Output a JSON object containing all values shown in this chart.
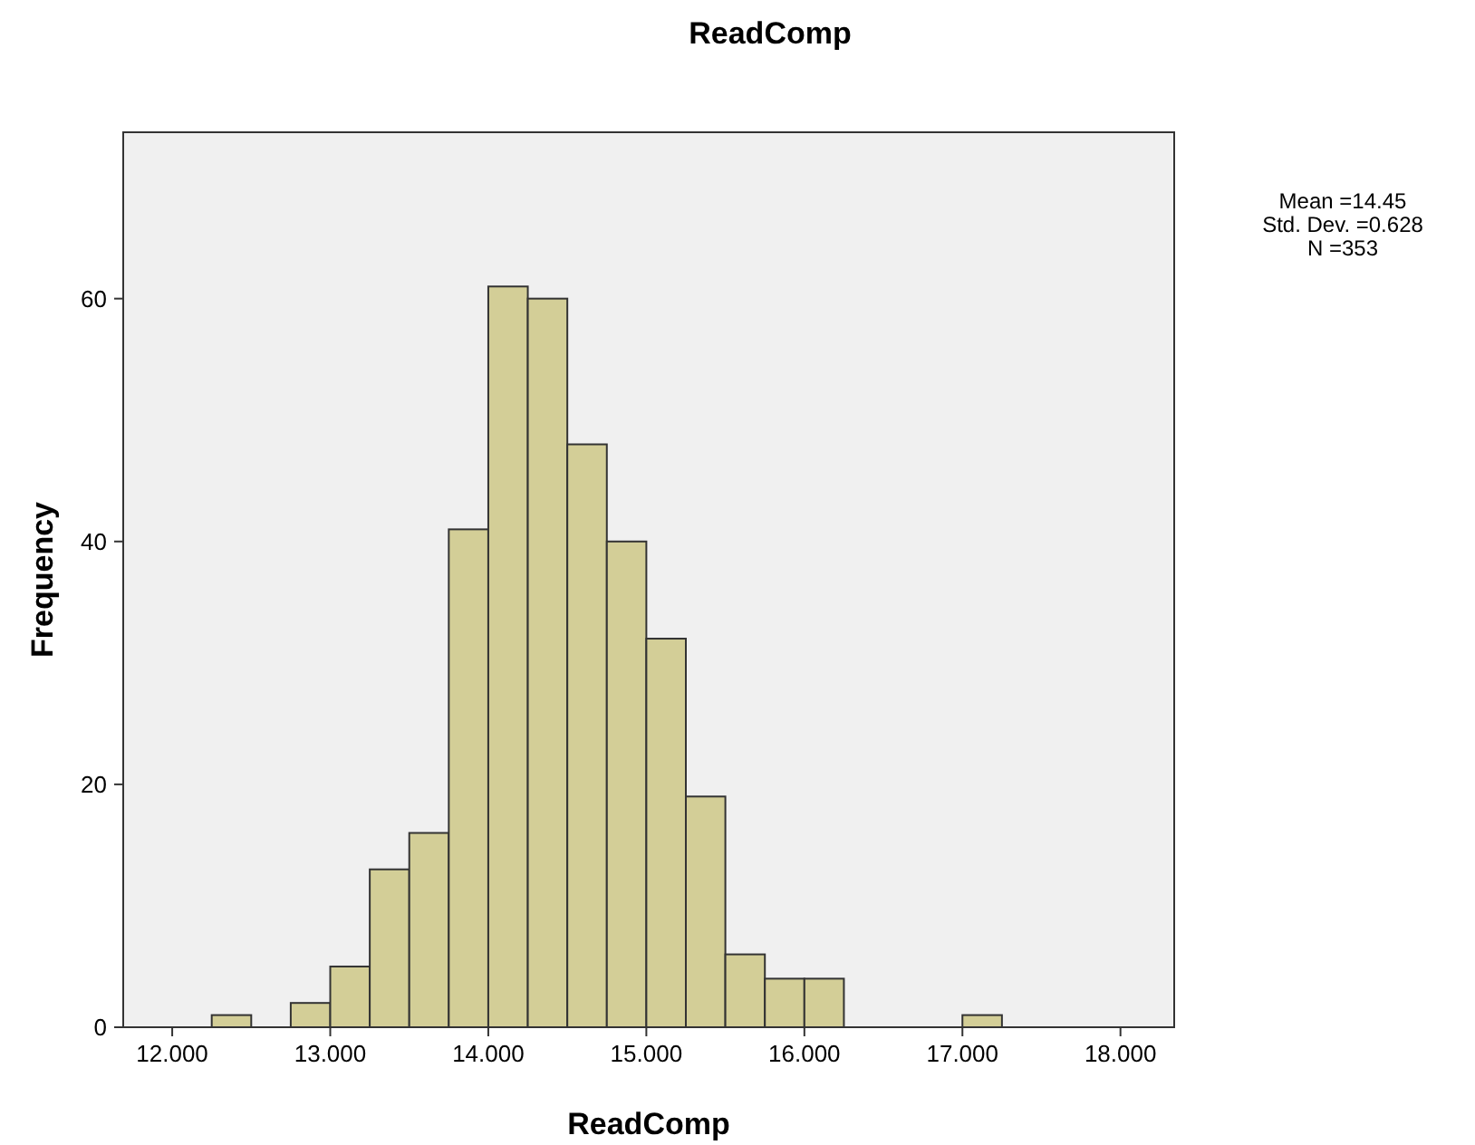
{
  "chart_data": {
    "type": "histogram",
    "title": "ReadComp",
    "xlabel": "ReadComp",
    "ylabel": "Frequency",
    "bins": [
      12.25,
      12.5,
      12.75,
      13,
      13.25,
      13.5,
      13.75,
      14,
      14.25,
      14.5,
      14.75,
      15,
      15.25,
      15.5,
      15.75,
      16,
      16.25,
      16.5,
      16.75,
      17,
      17.25
    ],
    "values": [
      1,
      0,
      2,
      5,
      13,
      16,
      41,
      61,
      60,
      48,
      40,
      32,
      19,
      6,
      4,
      4,
      0,
      0,
      0,
      1
    ],
    "color": "#d3ce97",
    "xlim": [
      11.69,
      18.34
    ],
    "xticks": [
      {
        "value": 12,
        "label": "12.000"
      },
      {
        "value": 13,
        "label": "13.000"
      },
      {
        "value": 14,
        "label": "14.000"
      },
      {
        "value": 15,
        "label": "15.000"
      },
      {
        "value": 16,
        "label": "16.000"
      },
      {
        "value": 17,
        "label": "17.000"
      },
      {
        "value": 18,
        "label": "18.000"
      }
    ],
    "ylim": [
      0,
      73.7
    ],
    "yticks": [
      0,
      20,
      40,
      60
    ],
    "annotations": [
      "Mean =14.45",
      "Std. Dev. =0.628",
      "N =353"
    ],
    "grid": false
  }
}
